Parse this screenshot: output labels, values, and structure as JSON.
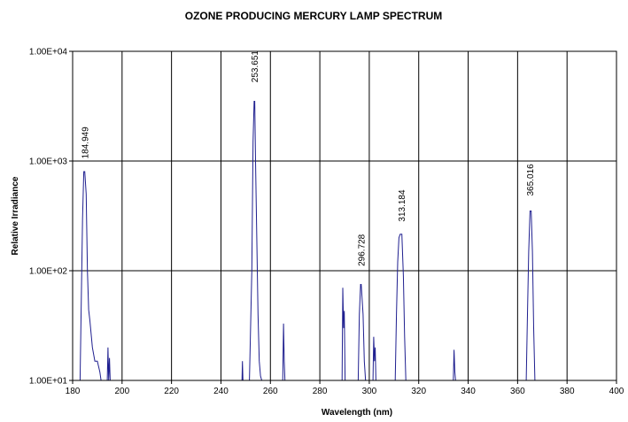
{
  "chart_data": {
    "type": "line",
    "title": "OZONE PRODUCING MERCURY LAMP SPECTRUM",
    "xlabel": "Wavelength (nm)",
    "ylabel": "Relative Irradiance",
    "xlim": [
      180,
      400
    ],
    "ylim": [
      10,
      10000
    ],
    "y_scale": "log",
    "grid": true,
    "x_ticks": [
      180,
      200,
      220,
      240,
      260,
      280,
      300,
      320,
      340,
      360,
      380,
      400
    ],
    "x_tick_labels": [
      "180",
      "200",
      "220",
      "240",
      "260",
      "280",
      "300",
      "320",
      "340",
      "360",
      "380",
      "400"
    ],
    "y_ticks": [
      10,
      100,
      1000,
      10000
    ],
    "y_tick_labels": [
      "1.00E+01",
      "1.00E+02",
      "1.00E+03",
      "1.00E+04"
    ],
    "series_color": "#1f1f8f",
    "series": [
      {
        "x": [
          183,
          184,
          184.5,
          184.9,
          185.5,
          186,
          186.5,
          187,
          188,
          189,
          190,
          191,
          191.5,
          194,
          194.3,
          194.6,
          194.9,
          195.2,
          248.5,
          248.7,
          248.9,
          251.5,
          252.5,
          253,
          253.4,
          253.651,
          254,
          254.5,
          255,
          255.5,
          256,
          256.5,
          265,
          265.3,
          265.6,
          265.9,
          289,
          289.3,
          289.6,
          289.9,
          290.2,
          295.5,
          296,
          296.5,
          296.728,
          297.5,
          298,
          298.5,
          301.5,
          301.8,
          302.1,
          302.4,
          302.7,
          310.5,
          311,
          311.5,
          312,
          312.5,
          313.184,
          313.8,
          314.3,
          314.8,
          334,
          334.3,
          334.6,
          334.9,
          363.5,
          364,
          364.5,
          365.016,
          365.5,
          366,
          366.5,
          367
        ],
        "y": [
          10,
          300,
          800,
          800,
          500,
          100,
          44,
          35,
          20,
          15,
          15,
          12,
          10,
          10,
          20,
          10,
          16,
          10,
          10,
          15,
          10,
          10,
          100,
          1500,
          3500,
          3500,
          1000,
          200,
          40,
          15,
          11,
          10,
          10,
          33,
          15,
          10,
          10,
          70,
          30,
          43,
          10,
          10,
          40,
          75,
          75,
          40,
          15,
          10,
          10,
          25,
          15,
          20,
          10,
          10,
          40,
          120,
          200,
          215,
          215,
          90,
          25,
          10,
          10,
          19,
          12,
          10,
          10,
          40,
          150,
          350,
          350,
          150,
          30,
          10
        ]
      }
    ],
    "annotations": [
      {
        "text": "184.949",
        "x": 184.949,
        "y": 1050
      },
      {
        "text": "253.651",
        "x": 253.651,
        "y": 5200
      },
      {
        "text": "296.728",
        "x": 296.728,
        "y": 110
      },
      {
        "text": "313.184",
        "x": 313.184,
        "y": 280
      },
      {
        "text": "365.016",
        "x": 365.016,
        "y": 480
      }
    ]
  }
}
